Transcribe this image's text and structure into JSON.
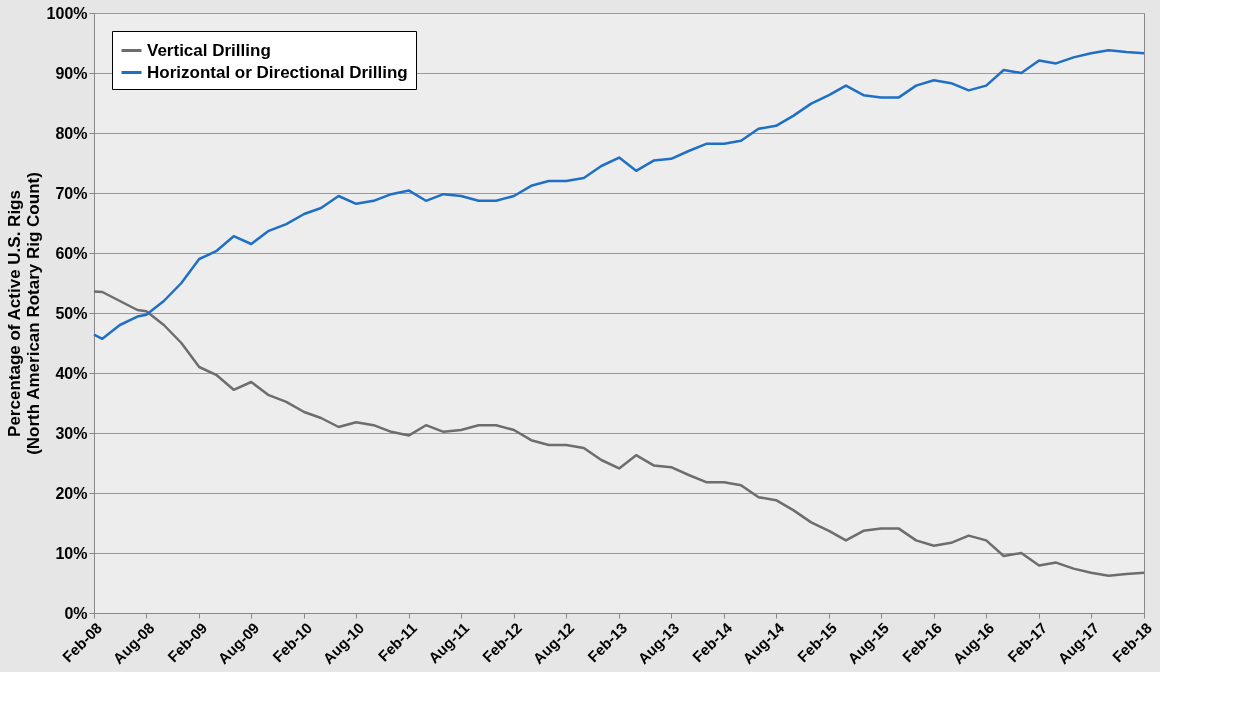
{
  "chart_data": {
    "type": "line",
    "ylabel": "Percentage of Active U.S. Rigs\n(North American Rotary Rig Count)",
    "x": [
      "2008-02",
      "2008-03",
      "2008-05",
      "2008-07",
      "2008-08",
      "2008-10",
      "2008-12",
      "2009-02",
      "2009-04",
      "2009-06",
      "2009-08",
      "2009-10",
      "2009-12",
      "2010-02",
      "2010-04",
      "2010-06",
      "2010-08",
      "2010-10",
      "2010-12",
      "2011-02",
      "2011-04",
      "2011-06",
      "2011-08",
      "2011-10",
      "2011-12",
      "2012-02",
      "2012-04",
      "2012-06",
      "2012-08",
      "2012-10",
      "2012-12",
      "2013-02",
      "2013-04",
      "2013-06",
      "2013-08",
      "2013-10",
      "2013-12",
      "2014-02",
      "2014-04",
      "2014-06",
      "2014-08",
      "2014-10",
      "2014-12",
      "2015-02",
      "2015-04",
      "2015-06",
      "2015-08",
      "2015-10",
      "2015-12",
      "2016-02",
      "2016-04",
      "2016-06",
      "2016-08",
      "2016-10",
      "2016-12",
      "2017-02",
      "2017-04",
      "2017-06",
      "2017-08",
      "2017-10",
      "2017-12",
      "2018-02"
    ],
    "series": [
      {
        "name": "Vertical Drilling",
        "color": "#6d6d6d",
        "values": [
          53.6,
          53.5,
          52,
          50.5,
          50.3,
          48,
          45,
          41,
          39.7,
          37.2,
          38.5,
          36.3,
          35.2,
          33.5,
          32.5,
          31,
          31.8,
          31.3,
          30.2,
          29.6,
          31.3,
          30.2,
          30.5,
          31.3,
          31.3,
          30.5,
          28.8,
          28,
          28,
          27.5,
          25.5,
          24.1,
          26.3,
          24.6,
          24.3,
          23,
          21.8,
          21.8,
          21.3,
          19.3,
          18.8,
          17.1,
          15.1,
          13.7,
          12.1,
          13.7,
          14.1,
          14.1,
          12.1,
          11.2,
          11.7,
          12.9,
          12.1,
          9.5,
          10,
          7.9,
          8.4,
          7.4,
          6.7,
          6.2,
          6.5,
          6.7
        ]
      },
      {
        "name": "Horizontal or Directional Drilling",
        "color": "#1f6fc5",
        "values": [
          46.4,
          45.7,
          48,
          49.4,
          49.7,
          52,
          55,
          59,
          60.3,
          62.8,
          61.5,
          63.7,
          64.8,
          66.5,
          67.5,
          69.5,
          68.2,
          68.7,
          69.8,
          70.4,
          68.7,
          69.8,
          69.5,
          68.7,
          68.7,
          69.5,
          71.2,
          72,
          72,
          72.5,
          74.5,
          75.9,
          73.7,
          75.4,
          75.7,
          77,
          78.2,
          78.2,
          78.7,
          80.7,
          81.2,
          82.9,
          84.9,
          86.3,
          87.9,
          86.3,
          85.9,
          85.9,
          87.9,
          88.8,
          88.3,
          87.1,
          87.9,
          90.5,
          90,
          92.1,
          91.6,
          92.6,
          93.3,
          93.8,
          93.5,
          93.3
        ]
      }
    ],
    "xlim": [
      "2008-02",
      "2018-02"
    ],
    "xticks": [
      {
        "value": "2008-02",
        "label": "Feb-08"
      },
      {
        "value": "2008-08",
        "label": "Aug-08"
      },
      {
        "value": "2009-02",
        "label": "Feb-09"
      },
      {
        "value": "2009-08",
        "label": "Aug-09"
      },
      {
        "value": "2010-02",
        "label": "Feb-10"
      },
      {
        "value": "2010-08",
        "label": "Aug-10"
      },
      {
        "value": "2011-02",
        "label": "Feb-11"
      },
      {
        "value": "2011-08",
        "label": "Aug-11"
      },
      {
        "value": "2012-02",
        "label": "Feb-12"
      },
      {
        "value": "2012-08",
        "label": "Aug-12"
      },
      {
        "value": "2013-02",
        "label": "Feb-13"
      },
      {
        "value": "2013-08",
        "label": "Aug-13"
      },
      {
        "value": "2014-02",
        "label": "Feb-14"
      },
      {
        "value": "2014-08",
        "label": "Aug-14"
      },
      {
        "value": "2015-02",
        "label": "Feb-15"
      },
      {
        "value": "2015-08",
        "label": "Aug-15"
      },
      {
        "value": "2016-02",
        "label": "Feb-16"
      },
      {
        "value": "2016-08",
        "label": "Aug-16"
      },
      {
        "value": "2017-02",
        "label": "Feb-17"
      },
      {
        "value": "2017-08",
        "label": "Aug-17"
      },
      {
        "value": "2018-02",
        "label": "Feb-18"
      }
    ],
    "ylim": [
      0,
      100
    ],
    "yticks": [
      {
        "value": 0,
        "label": "0%"
      },
      {
        "value": 10,
        "label": "10%"
      },
      {
        "value": 20,
        "label": "20%"
      },
      {
        "value": 30,
        "label": "30%"
      },
      {
        "value": 40,
        "label": "40%"
      },
      {
        "value": 50,
        "label": "50%"
      },
      {
        "value": 60,
        "label": "60%"
      },
      {
        "value": 70,
        "label": "70%"
      },
      {
        "value": 80,
        "label": "80%"
      },
      {
        "value": 90,
        "label": "90%"
      },
      {
        "value": 100,
        "label": "100%"
      }
    ],
    "grid": "y",
    "legend": "top left",
    "marker": "none",
    "line_style": "solid"
  }
}
